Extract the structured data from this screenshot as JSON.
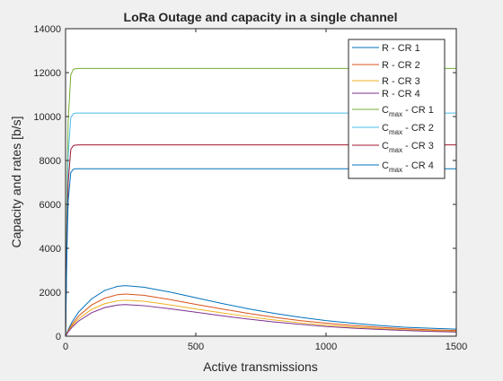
{
  "chart_data": {
    "type": "line",
    "title": "LoRa Outage and capacity in a single channel",
    "xlabel": "Active transmissions",
    "ylabel": "Capacity and rates [b/s]",
    "xlim": [
      0,
      1500
    ],
    "ylim": [
      0,
      14000
    ],
    "xticks": [
      0,
      500,
      1000,
      1500
    ],
    "xtick_labels": [
      "0",
      "500",
      "1000",
      "1500"
    ],
    "yticks": [
      0,
      2000,
      4000,
      6000,
      8000,
      10000,
      12000,
      14000
    ],
    "ytick_labels": [
      "0",
      "2000",
      "4000",
      "6000",
      "8000",
      "10000",
      "12000",
      "14000"
    ],
    "grid": false,
    "legend_position": "top-right",
    "series": [
      {
        "name": "R - CR 1",
        "color": "#0072bd",
        "x": [
          0,
          10,
          25,
          50,
          100,
          150,
          200,
          230,
          300,
          400,
          500,
          600,
          700,
          800,
          900,
          1000,
          1100,
          1200,
          1300,
          1400,
          1500
        ],
        "y": [
          0,
          300,
          650,
          1100,
          1700,
          2080,
          2270,
          2300,
          2230,
          2010,
          1750,
          1490,
          1250,
          1040,
          860,
          710,
          590,
          490,
          410,
          360,
          320
        ]
      },
      {
        "name": "R - CR 2",
        "color": "#d95319",
        "x": [
          0,
          10,
          25,
          50,
          100,
          150,
          200,
          230,
          300,
          400,
          500,
          600,
          700,
          800,
          900,
          1000,
          1100,
          1200,
          1300,
          1400,
          1500
        ],
        "y": [
          0,
          250,
          540,
          920,
          1420,
          1730,
          1890,
          1920,
          1860,
          1670,
          1450,
          1240,
          1040,
          860,
          710,
          590,
          490,
          410,
          340,
          290,
          260
        ]
      },
      {
        "name": "R - CR 3",
        "color": "#edb120",
        "x": [
          0,
          10,
          25,
          50,
          100,
          150,
          200,
          230,
          300,
          400,
          500,
          600,
          700,
          800,
          900,
          1000,
          1100,
          1200,
          1300,
          1400,
          1500
        ],
        "y": [
          0,
          215,
          470,
          790,
          1220,
          1480,
          1610,
          1640,
          1590,
          1430,
          1240,
          1060,
          890,
          740,
          610,
          500,
          420,
          350,
          290,
          250,
          220
        ]
      },
      {
        "name": "R - CR 4",
        "color": "#7e2f8e",
        "x": [
          0,
          10,
          25,
          50,
          100,
          150,
          200,
          230,
          300,
          400,
          500,
          600,
          700,
          800,
          900,
          1000,
          1100,
          1200,
          1300,
          1400,
          1500
        ],
        "y": [
          0,
          190,
          410,
          690,
          1070,
          1300,
          1420,
          1440,
          1390,
          1250,
          1090,
          930,
          780,
          650,
          540,
          440,
          370,
          310,
          260,
          220,
          190
        ]
      },
      {
        "name": "C",
        "name_subscript": "max",
        "name_suffix": " - CR 1",
        "color": "#77ac30",
        "x": [
          0,
          5,
          10,
          20,
          30,
          40,
          50,
          1500
        ],
        "y": [
          0,
          6000,
          9800,
          11900,
          12150,
          12180,
          12190,
          12190
        ]
      },
      {
        "name": "C",
        "name_subscript": "max",
        "name_suffix": " - CR 2",
        "color": "#4dbeee",
        "x": [
          0,
          5,
          10,
          20,
          30,
          40,
          50,
          1500
        ],
        "y": [
          0,
          5000,
          8200,
          9950,
          10130,
          10160,
          10160,
          10160
        ]
      },
      {
        "name": "C",
        "name_subscript": "max",
        "name_suffix": " - CR 3",
        "color": "#a2142f",
        "x": [
          0,
          5,
          10,
          20,
          30,
          40,
          50,
          1500
        ],
        "y": [
          0,
          4300,
          7000,
          8500,
          8680,
          8700,
          8710,
          8710
        ]
      },
      {
        "name": "C",
        "name_subscript": "max",
        "name_suffix": " - CR 4",
        "color": "#0072bd",
        "x": [
          0,
          5,
          10,
          20,
          30,
          40,
          50,
          1500
        ],
        "y": [
          0,
          3800,
          6150,
          7450,
          7600,
          7620,
          7620,
          7620
        ]
      }
    ]
  }
}
